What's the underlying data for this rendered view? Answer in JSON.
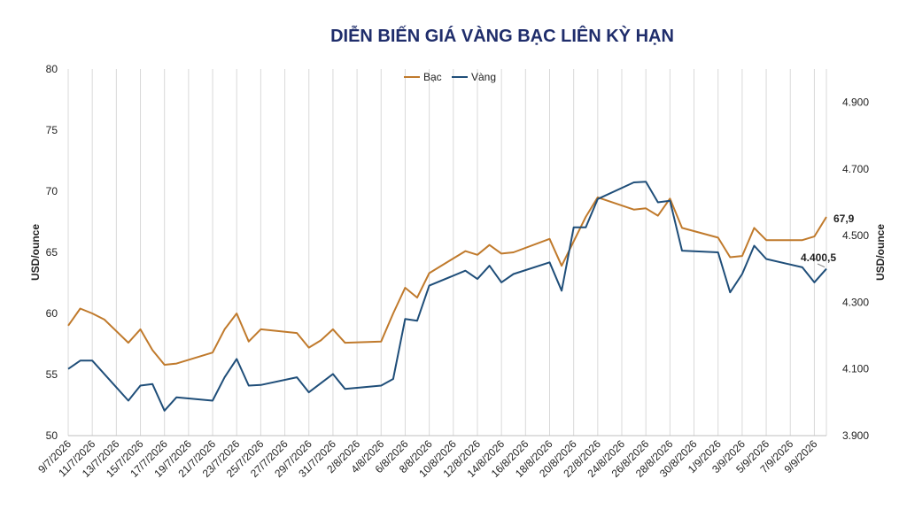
{
  "title": "DIỄN BIẾN GIÁ VÀNG BẠC LIÊN KỲ HẠN",
  "chart_data": {
    "type": "line",
    "title": "DIỄN BIẾN GIÁ VÀNG BẠC LIÊN KỲ HẠN",
    "ylabel_left": "USD/ounce",
    "ylabel_right": "USD/ounce",
    "ylim_left": [
      50,
      80
    ],
    "ylim_right": [
      3900,
      5000
    ],
    "yticks_left": [
      "50",
      "55",
      "60",
      "65",
      "70",
      "75",
      "80"
    ],
    "yticks_right": [
      "3.900",
      "4.100",
      "4.300",
      "4.500",
      "4.700",
      "4.900"
    ],
    "yticks_right_values": [
      3900,
      4100,
      4300,
      4500,
      4700,
      4900
    ],
    "x_start": "2026-07-09",
    "x_end": "2026-09-10",
    "xticks": [
      "9/7/2026",
      "11/7/2026",
      "13/7/2026",
      "15/7/2026",
      "17/7/2026",
      "19/7/2026",
      "21/7/2026",
      "23/7/2026",
      "25/7/2026",
      "27/7/2026",
      "29/7/2026",
      "31/7/2026",
      "2/8/2026",
      "4/8/2026",
      "6/8/2026",
      "8/8/2026",
      "10/8/2026",
      "12/8/2026",
      "14/8/2026",
      "16/8/2026",
      "18/8/2026",
      "20/8/2026",
      "22/8/2026",
      "24/8/2026",
      "26/8/2026",
      "28/8/2026",
      "30/8/2026",
      "1/9/2026",
      "3/9/2026",
      "5/9/2026",
      "7/9/2026",
      "9/9/2026"
    ],
    "legend": [
      "Bạc",
      "Vàng"
    ],
    "legend_position": "top-center",
    "grid": "vertical",
    "end_labels": {
      "silver": "67,9",
      "gold": "4.400,5"
    },
    "series": [
      {
        "name": "Bạc",
        "axis": "left",
        "color": "#c07a2c",
        "points": [
          [
            "2026-07-09",
            59.0
          ],
          [
            "2026-07-10",
            60.4
          ],
          [
            "2026-07-11",
            60.0
          ],
          [
            "2026-07-12",
            59.5
          ],
          [
            "2026-07-14",
            57.6
          ],
          [
            "2026-07-15",
            58.7
          ],
          [
            "2026-07-16",
            57.0
          ],
          [
            "2026-07-17",
            55.8
          ],
          [
            "2026-07-18",
            55.9
          ],
          [
            "2026-07-21",
            56.8
          ],
          [
            "2026-07-22",
            58.7
          ],
          [
            "2026-07-23",
            60.0
          ],
          [
            "2026-07-24",
            57.7
          ],
          [
            "2026-07-25",
            58.7
          ],
          [
            "2026-07-28",
            58.4
          ],
          [
            "2026-07-29",
            57.2
          ],
          [
            "2026-07-30",
            57.8
          ],
          [
            "2026-07-31",
            58.7
          ],
          [
            "2026-08-01",
            57.6
          ],
          [
            "2026-08-04",
            57.7
          ],
          [
            "2026-08-05",
            60.0
          ],
          [
            "2026-08-06",
            62.1
          ],
          [
            "2026-08-07",
            61.3
          ],
          [
            "2026-08-08",
            63.3
          ],
          [
            "2026-08-11",
            65.1
          ],
          [
            "2026-08-12",
            64.8
          ],
          [
            "2026-08-13",
            65.6
          ],
          [
            "2026-08-14",
            64.9
          ],
          [
            "2026-08-15",
            65.0
          ],
          [
            "2026-08-18",
            66.1
          ],
          [
            "2026-08-19",
            63.9
          ],
          [
            "2026-08-21",
            67.9
          ],
          [
            "2026-08-22",
            69.5
          ],
          [
            "2026-08-25",
            68.5
          ],
          [
            "2026-08-26",
            68.6
          ],
          [
            "2026-08-27",
            68.0
          ],
          [
            "2026-08-28",
            69.4
          ],
          [
            "2026-08-29",
            67.0
          ],
          [
            "2026-09-01",
            66.2
          ],
          [
            "2026-09-02",
            64.6
          ],
          [
            "2026-09-03",
            64.7
          ],
          [
            "2026-09-04",
            67.0
          ],
          [
            "2026-09-05",
            66.0
          ],
          [
            "2026-09-08",
            66.0
          ],
          [
            "2026-09-09",
            66.3
          ],
          [
            "2026-09-10",
            67.9
          ]
        ]
      },
      {
        "name": "Vàng",
        "axis": "right",
        "color": "#1f4e79",
        "points": [
          [
            "2026-07-09",
            4100
          ],
          [
            "2026-07-10",
            4125
          ],
          [
            "2026-07-11",
            4125
          ],
          [
            "2026-07-14",
            4005
          ],
          [
            "2026-07-15",
            4050
          ],
          [
            "2026-07-16",
            4055
          ],
          [
            "2026-07-17",
            3975
          ],
          [
            "2026-07-18",
            4015
          ],
          [
            "2026-07-21",
            4005
          ],
          [
            "2026-07-22",
            4075
          ],
          [
            "2026-07-23",
            4130
          ],
          [
            "2026-07-24",
            4050
          ],
          [
            "2026-07-25",
            4052
          ],
          [
            "2026-07-28",
            4075
          ],
          [
            "2026-07-29",
            4030
          ],
          [
            "2026-07-31",
            4085
          ],
          [
            "2026-08-01",
            4040
          ],
          [
            "2026-08-04",
            4050
          ],
          [
            "2026-08-05",
            4070
          ],
          [
            "2026-08-06",
            4250
          ],
          [
            "2026-08-07",
            4245
          ],
          [
            "2026-08-08",
            4350
          ],
          [
            "2026-08-11",
            4395
          ],
          [
            "2026-08-12",
            4370
          ],
          [
            "2026-08-13",
            4410
          ],
          [
            "2026-08-14",
            4360
          ],
          [
            "2026-08-15",
            4385
          ],
          [
            "2026-08-18",
            4420
          ],
          [
            "2026-08-19",
            4335
          ],
          [
            "2026-08-20",
            4525
          ],
          [
            "2026-08-21",
            4525
          ],
          [
            "2026-08-22",
            4610
          ],
          [
            "2026-08-25",
            4660
          ],
          [
            "2026-08-26",
            4662
          ],
          [
            "2026-08-27",
            4600
          ],
          [
            "2026-08-28",
            4605
          ],
          [
            "2026-08-29",
            4455
          ],
          [
            "2026-09-01",
            4450
          ],
          [
            "2026-09-02",
            4330
          ],
          [
            "2026-09-03",
            4385
          ],
          [
            "2026-09-04",
            4470
          ],
          [
            "2026-09-05",
            4430
          ],
          [
            "2026-09-08",
            4405
          ],
          [
            "2026-09-09",
            4360
          ],
          [
            "2026-09-10",
            4400.5
          ]
        ]
      }
    ]
  }
}
